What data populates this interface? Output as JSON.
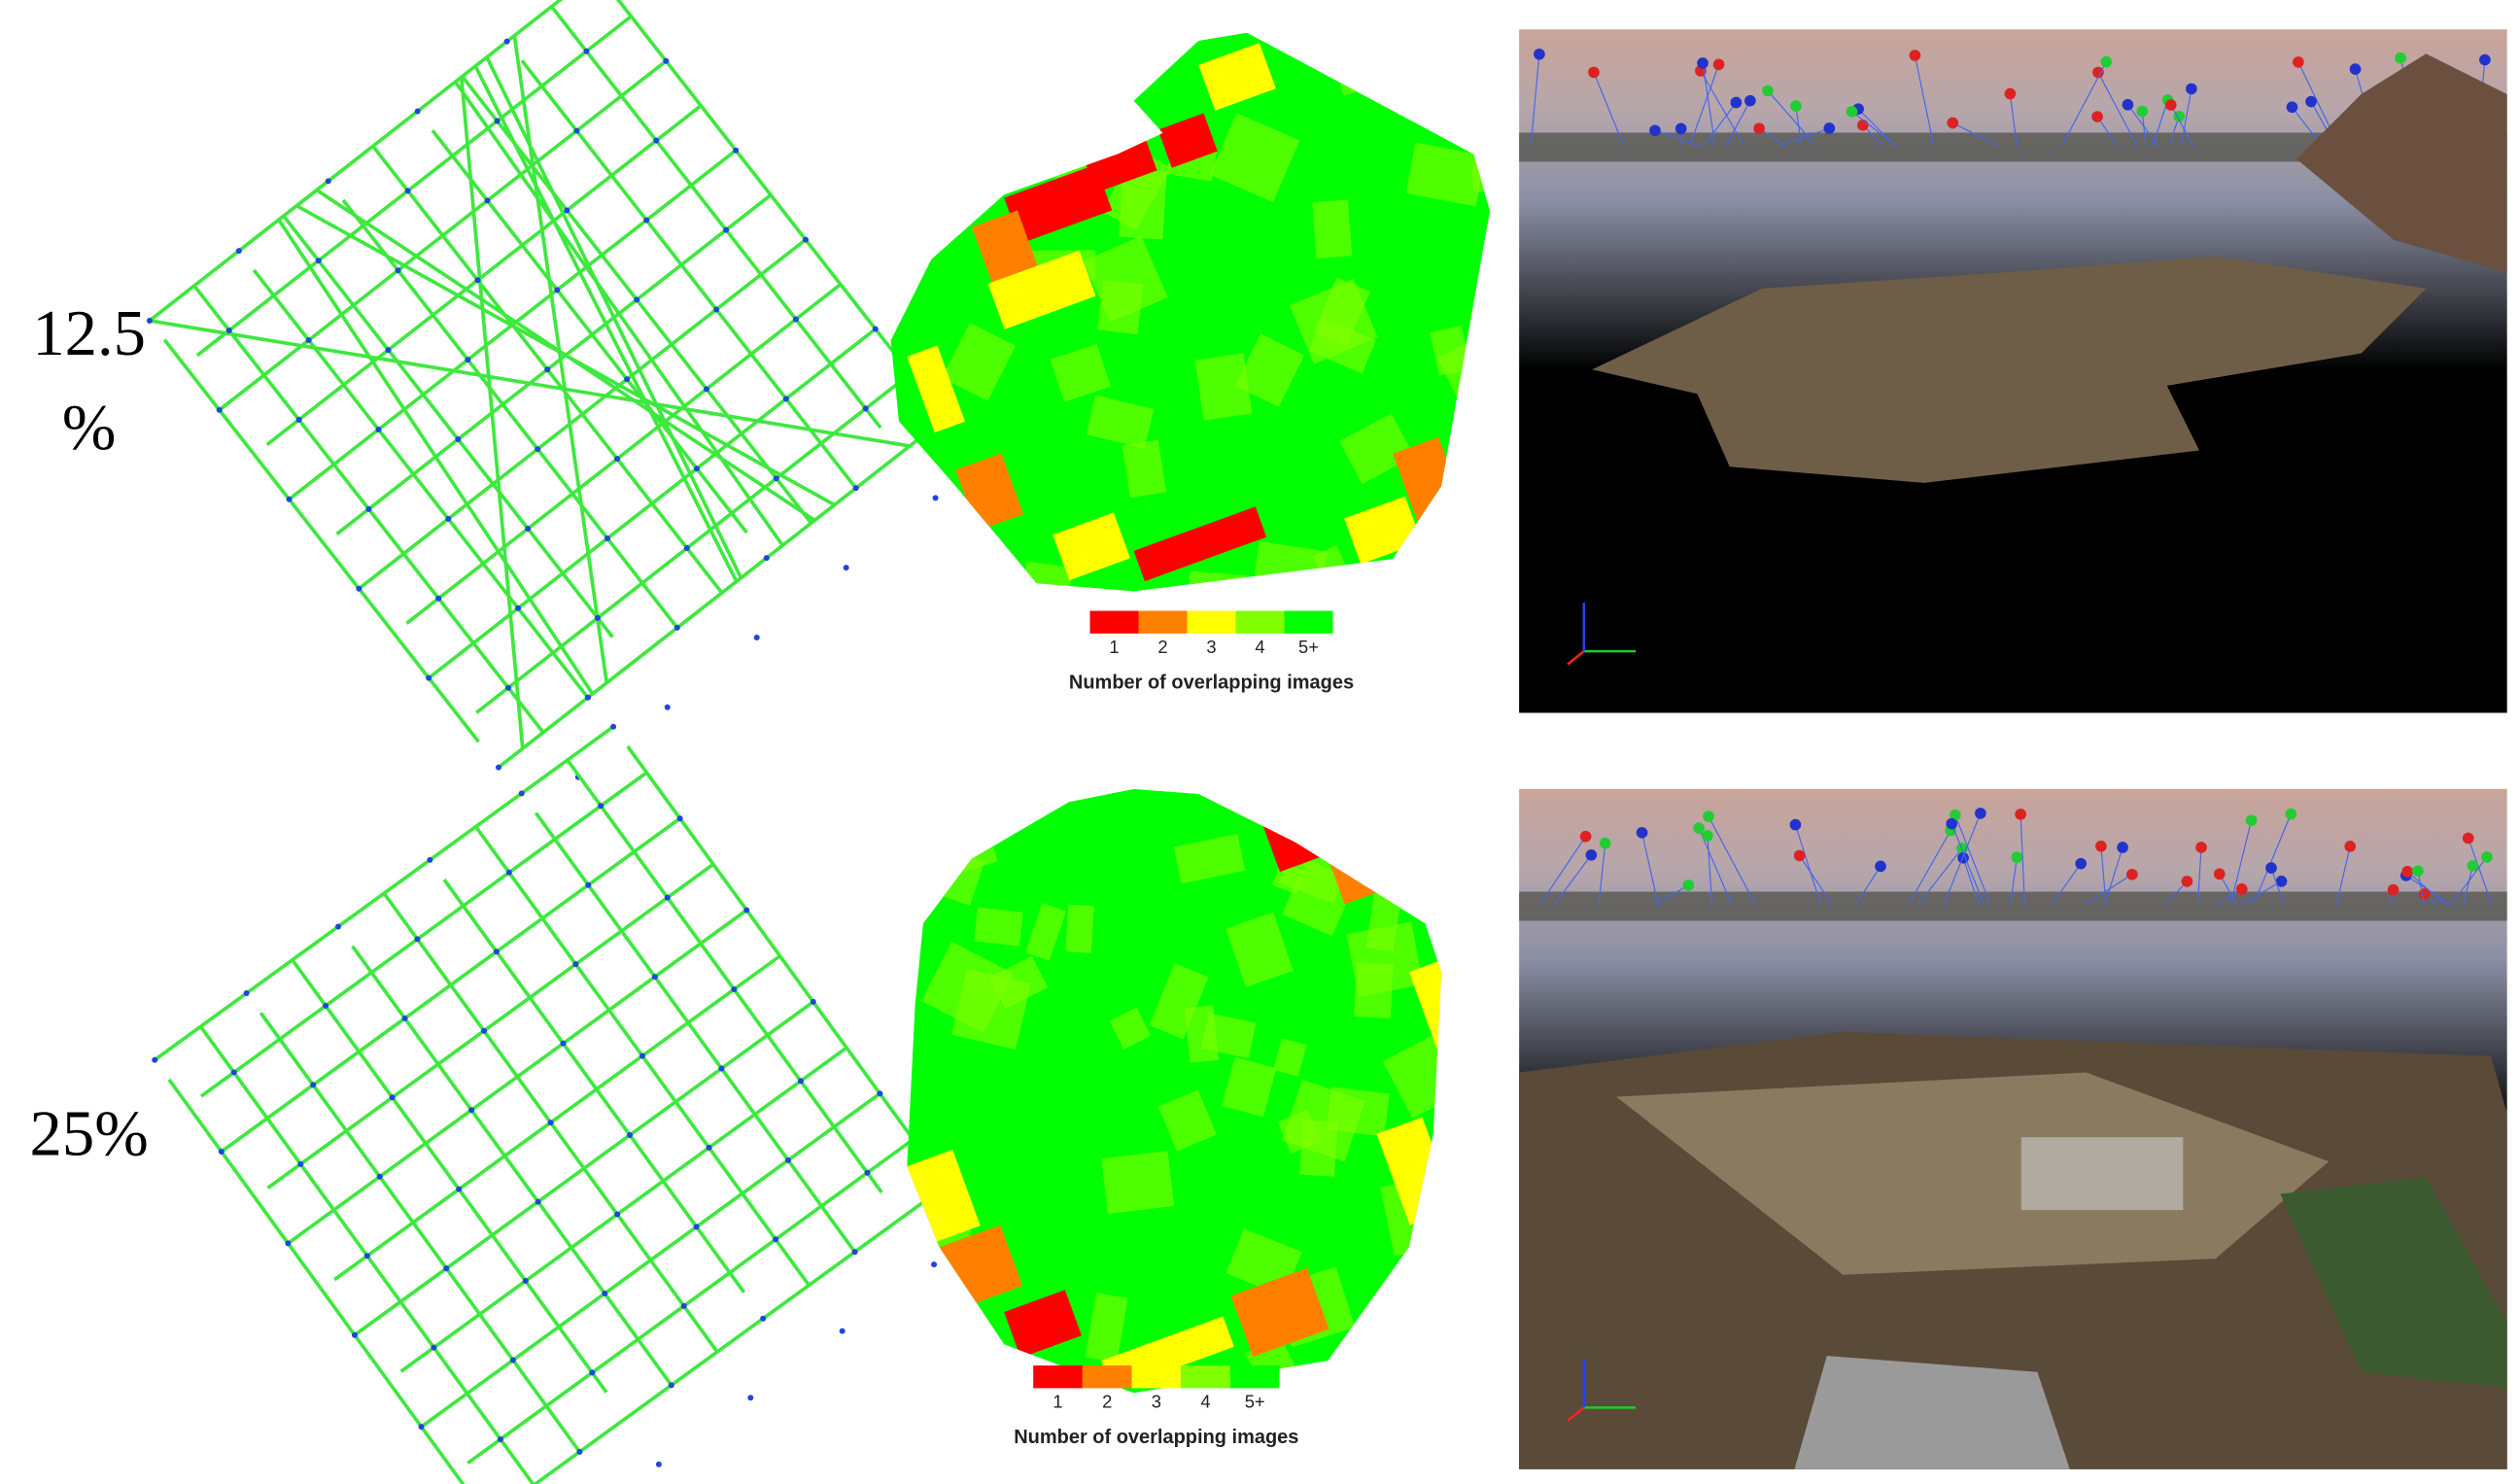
{
  "rows": [
    {
      "label": "12.5 %",
      "legend": {
        "labels": [
          "1",
          "2",
          "3",
          "4",
          "5+"
        ],
        "colors": [
          "#ff0000",
          "#ff8000",
          "#ffff00",
          "#80ff00",
          "#00ff00"
        ],
        "title": "Number of overlapping images"
      }
    },
    {
      "label": "25%",
      "legend": {
        "labels": [
          "1",
          "2",
          "3",
          "4",
          "5+"
        ],
        "colors": [
          "#ff0000",
          "#ff8000",
          "#ffff00",
          "#80ff00",
          "#00ff00"
        ],
        "title": "Number of overlapping images"
      }
    }
  ]
}
